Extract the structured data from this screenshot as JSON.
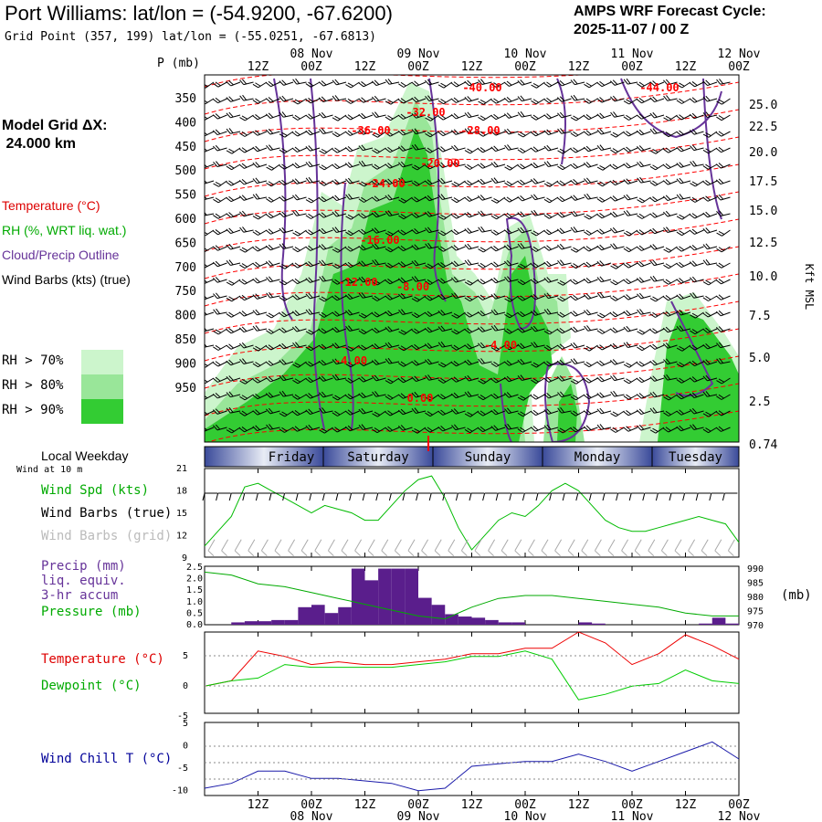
{
  "header": {
    "title": "Port Williams:  lat/lon = (-54.9200, -67.6200)",
    "subtitle": "Grid Point (357, 199) lat/lon = (-55.0251, -67.6813)",
    "cycle_line1": "AMPS WRF Forecast Cycle:",
    "cycle_line2": "2025-11-07 / 00  Z"
  },
  "legend": {
    "model_grid": "Model Grid ΔX:\n 24.000 km",
    "temperature": "Temperature (°C)",
    "rh": "RH (%, WRT liq. wat.)",
    "cloud": "Cloud/Precip Outline",
    "wind": "Wind Barbs (kts) (true)",
    "rh70": "RH > 70%",
    "rh80": "RH > 80%",
    "rh90": "RH > 90%",
    "colors": {
      "rh70": "#ccf5cc",
      "rh80": "#99e699",
      "rh90": "#33cc33",
      "temp": "#ff0000",
      "cloud": "#663399"
    }
  },
  "axes": {
    "p_label": "P (mb)",
    "kft_label": "Kft MSL",
    "mb_label": "(mb)",
    "top_time_ticks": [
      "12Z",
      "00Z",
      "12Z",
      "00Z",
      "12Z",
      "00Z",
      "12Z",
      "00Z",
      "12Z",
      "00Z"
    ],
    "top_date_ticks": [
      "08 Nov",
      "09 Nov",
      "10 Nov",
      "11 Nov",
      "12 Nov"
    ],
    "bottom_time_ticks": [
      "12Z",
      "00Z",
      "12Z",
      "00Z",
      "12Z",
      "00Z",
      "12Z",
      "00Z",
      "12Z",
      "00Z"
    ],
    "bottom_date_ticks": [
      "08 Nov",
      "09 Nov",
      "10 Nov",
      "11 Nov",
      "12 Nov"
    ],
    "pressure_levels": [
      "350",
      "400",
      "450",
      "500",
      "550",
      "600",
      "650",
      "700",
      "750",
      "800",
      "850",
      "900",
      "950"
    ],
    "kft_levels": [
      "25.0",
      "22.5",
      "20.0",
      "17.5",
      "15.0",
      "12.5",
      "10.0",
      "7.5",
      "5.0",
      "2.5",
      "0.74"
    ]
  },
  "temp_contour_labels": [
    "-40.00",
    "-44.00",
    "-32.00",
    "-36.00",
    "-28.00",
    "-20.00",
    "-24.00",
    "-16.00",
    "-12.00",
    "-8.00",
    "-4.00",
    "0.00",
    "-4.00"
  ],
  "weekday_bar": {
    "title": "Local Weekday",
    "days": [
      "Friday",
      "Saturday",
      "Sunday",
      "Monday",
      "Tuesday"
    ]
  },
  "wind_panel": {
    "caption": "Wind at 10 m",
    "labels": [
      "Wind Spd (kts)",
      "Wind Barbs (true)",
      "Wind Barbs (grid)"
    ],
    "yticks": [
      "21",
      "18",
      "15",
      "12",
      "9"
    ]
  },
  "precip_panel": {
    "labels": [
      "Precip (mm)",
      "liq. equiv.",
      "3-hr accum",
      "Pressure (mb)"
    ],
    "left_ticks": [
      "2.5",
      "2.0",
      "1.5",
      "1.0",
      "0.5",
      "0.0"
    ],
    "right_ticks": [
      "990",
      "985",
      "980",
      "975",
      "970"
    ]
  },
  "temp_panel": {
    "labels": [
      "Temperature (°C)",
      "Dewpoint (°C)"
    ],
    "yticks": [
      "5",
      "0",
      "-5"
    ]
  },
  "chill_panel": {
    "labels": [
      "Wind Chill T (°C)"
    ],
    "yticks": [
      "5",
      "0",
      "-5",
      "-10"
    ]
  },
  "chart_data": [
    {
      "type": "line",
      "title": "Wind Spd (kts)",
      "x": [
        0,
        3,
        6,
        9,
        12,
        15,
        18,
        21,
        24,
        27,
        30,
        33,
        36,
        39,
        42,
        45,
        48,
        51,
        54,
        57,
        60,
        63,
        66,
        69,
        72,
        75,
        78,
        81,
        84,
        87,
        90,
        93,
        96,
        99,
        102,
        105,
        108,
        111,
        114,
        117,
        120
      ],
      "values": [
        10.5,
        12.5,
        14.5,
        18.5,
        19,
        18,
        17,
        16,
        15,
        16,
        15.5,
        15,
        14,
        14,
        16,
        18,
        19.5,
        20,
        17,
        13,
        10,
        12,
        14,
        15,
        14.5,
        16,
        18,
        19,
        18,
        16,
        14,
        13,
        12.5,
        12.5,
        13,
        13.5,
        14,
        14.5,
        14,
        13.5,
        11
      ],
      "ylim": [
        9,
        21
      ]
    },
    {
      "type": "bar",
      "title": "Precip (mm) liq. equiv. 3-hr accum",
      "x": [
        0,
        3,
        6,
        9,
        12,
        15,
        18,
        21,
        24,
        27,
        30,
        33,
        36,
        39,
        42,
        45,
        48,
        51,
        54,
        57,
        60,
        63,
        66,
        69,
        72,
        75,
        78,
        81,
        84,
        87,
        90,
        93,
        96,
        99,
        102,
        105,
        108,
        111,
        114,
        117
      ],
      "values": [
        0,
        0,
        0.1,
        0.15,
        0.15,
        0.2,
        0.2,
        0.75,
        0.85,
        0.5,
        0.75,
        2.4,
        1.9,
        2.4,
        2.4,
        2.4,
        1.15,
        0.85,
        0.45,
        0.35,
        0.3,
        0.2,
        0.1,
        0.1,
        0,
        0,
        0,
        0,
        0.1,
        0.05,
        0,
        0,
        0,
        0,
        0,
        0,
        0,
        0.05,
        0.3,
        0.05
      ],
      "ylim": [
        0,
        2.5
      ]
    },
    {
      "type": "line",
      "title": "Pressure (mb)",
      "x": [
        0,
        6,
        12,
        18,
        24,
        30,
        36,
        42,
        48,
        54,
        60,
        66,
        72,
        78,
        84,
        90,
        96,
        102,
        108,
        114,
        120
      ],
      "values": [
        988,
        987,
        984,
        983,
        981,
        979,
        977,
        975,
        973,
        972,
        976,
        979,
        980,
        980,
        979,
        978,
        977,
        976,
        974,
        973,
        973
      ],
      "ylim": [
        970,
        990
      ]
    },
    {
      "type": "line",
      "x": [
        0,
        6,
        12,
        18,
        24,
        30,
        36,
        42,
        48,
        54,
        60,
        66,
        72,
        78,
        84,
        90,
        96,
        102,
        108,
        114,
        120
      ],
      "series": [
        {
          "name": "Temperature (°C)",
          "values": [
            0,
            1,
            6.5,
            5.5,
            4,
            4.5,
            4,
            4,
            4.5,
            5,
            6,
            6,
            7,
            7,
            10,
            8,
            4,
            6,
            9.5,
            7.5,
            5
          ]
        },
        {
          "name": "Dewpoint (°C)",
          "values": [
            0,
            1,
            1.5,
            4,
            3.5,
            3.5,
            3.5,
            3.5,
            4,
            4.5,
            5.5,
            5.5,
            6.5,
            5,
            -2.5,
            -1.5,
            0,
            0.5,
            3,
            1,
            0.5
          ]
        }
      ],
      "ylim": [
        -5,
        10
      ]
    },
    {
      "type": "line",
      "title": "Wind Chill T (°C)",
      "x": [
        0,
        6,
        12,
        18,
        24,
        30,
        36,
        42,
        48,
        54,
        60,
        66,
        72,
        78,
        84,
        90,
        96,
        102,
        108,
        114,
        120
      ],
      "values": [
        -8.5,
        -7.5,
        -5,
        -5,
        -6.5,
        -6.5,
        -7,
        -7.5,
        -9,
        -8.5,
        -4,
        -3.5,
        -3,
        -3,
        -1.5,
        -3,
        -5,
        -3,
        -1,
        1,
        -2.5
      ],
      "ylim": [
        -10,
        5
      ]
    }
  ]
}
